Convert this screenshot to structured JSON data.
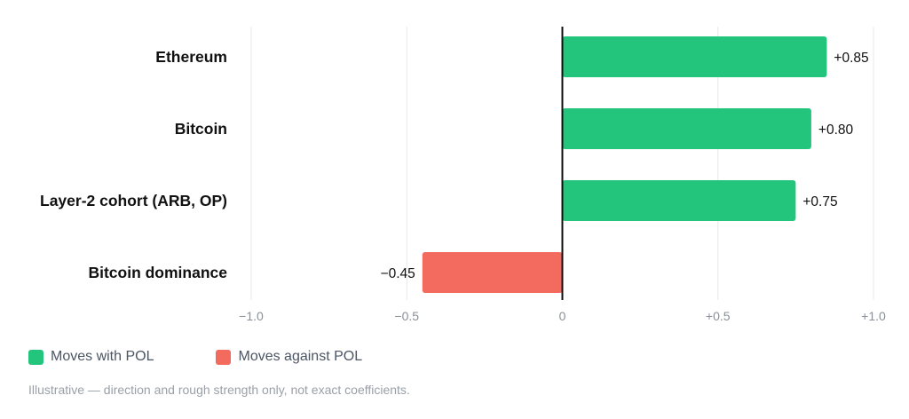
{
  "chart_data": {
    "type": "bar",
    "orientation": "horizontal",
    "categories": [
      "Ethereum",
      "Bitcoin",
      "Layer-2 cohort (ARB, OP)",
      "Bitcoin dominance"
    ],
    "values": [
      0.85,
      0.8,
      0.75,
      -0.45
    ],
    "value_labels": [
      "+0.85",
      "+0.80",
      "+0.75",
      "−0.45"
    ],
    "xlim": [
      -1.0,
      1.0
    ],
    "xticks": [
      -1.0,
      -0.5,
      0,
      0.5,
      1.0
    ],
    "xtick_labels": [
      "−1.0",
      "−0.5",
      "0",
      "+0.5",
      "+1.0"
    ],
    "grid": true,
    "legend_position": "bottom-left",
    "title": "",
    "xlabel": "",
    "ylabel": ""
  },
  "colors": {
    "positive": "#22c57b",
    "negative": "#f26b5e",
    "zero_line": "#111111",
    "grid": "#e8e8e8"
  },
  "legend": {
    "positive_label": "Moves with POL",
    "negative_label": "Moves against POL"
  },
  "footnote": "Illustrative — direction and rough strength only, not exact coefficients."
}
